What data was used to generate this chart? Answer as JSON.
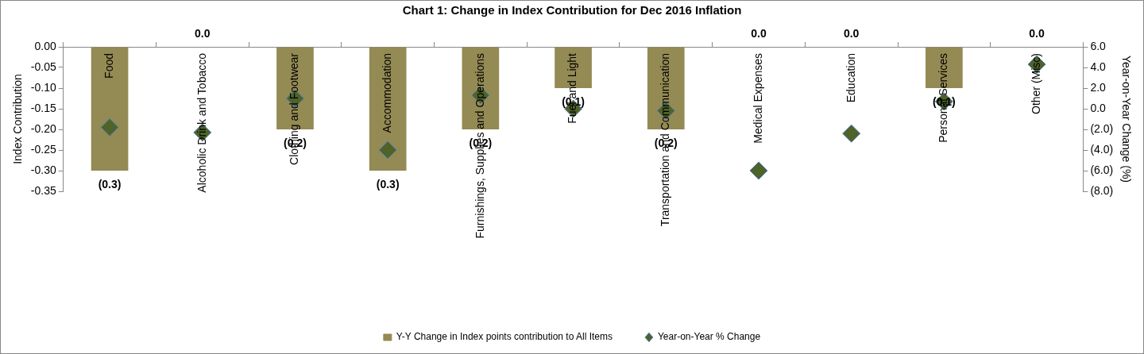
{
  "chart_data": {
    "type": "bar",
    "title": "Chart 1: Change in Index Contribution for Dec 2016 Inflation",
    "ylabel": "Index Contribution",
    "y2label": "Year-on-Year Change (%)",
    "categories": [
      "Food",
      "Alcoholic Drink and Tobacco",
      "Clothing and Footwear",
      "Accommodation",
      "Furnishings, Supplies and Operations",
      "Fuel and Light",
      "Transportation and Communication",
      "Medical Expenses",
      "Education",
      "Personal Services",
      "Other (Misc)"
    ],
    "series": [
      {
        "name": "Y-Y Change in Index points contribution to All Items",
        "color": "#948a54",
        "values": [
          -0.3,
          0.0,
          -0.2,
          -0.3,
          -0.2,
          -0.1,
          -0.2,
          0.0,
          0.0,
          -0.1,
          0.0
        ],
        "value_labels": [
          "(0.3)",
          "0.0",
          "(0.2)",
          "(0.3)",
          "(0.2)",
          "(0.1)",
          "(0.2)",
          "0.0",
          "0.0",
          "(0.1)",
          "0.0"
        ]
      },
      {
        "name": "Year-on-Year % Change",
        "type": "scatter",
        "axis": "y2",
        "color": "#4f6228",
        "x": [
          "Food",
          "Alcoholic Drink and Tobacco",
          "Clothing and Footwear",
          "Accommodation",
          "Furnishings, Supplies and Operations",
          "Fuel and Light",
          "Transportation and Communication",
          "Medical Expenses",
          "Education",
          "Personal Services",
          "Other (Misc)"
        ],
        "values": [
          -1.8,
          -2.3,
          1.0,
          -4.0,
          1.3,
          0.0,
          -0.2,
          -6.0,
          -2.4,
          0.7,
          4.3
        ]
      }
    ],
    "ylim": [
      -0.35,
      0
    ],
    "yticks": [
      {
        "value": 0,
        "label": "0.00"
      },
      {
        "value": -0.05,
        "label": "-0.05"
      },
      {
        "value": -0.1,
        "label": "-0.10"
      },
      {
        "value": -0.15,
        "label": "-0.15"
      },
      {
        "value": -0.2,
        "label": "-0.20"
      },
      {
        "value": -0.25,
        "label": "-0.25"
      },
      {
        "value": -0.3,
        "label": "-0.30"
      },
      {
        "value": -0.35,
        "label": "-0.35"
      }
    ],
    "y2lim": [
      -8,
      6
    ],
    "y2ticks": [
      {
        "value": 6,
        "label": "6.0"
      },
      {
        "value": 4,
        "label": "4.0"
      },
      {
        "value": 2,
        "label": "2.0"
      },
      {
        "value": 0,
        "label": "0.0"
      },
      {
        "value": -2,
        "label": "(2.0)"
      },
      {
        "value": -4,
        "label": "(4.0)"
      },
      {
        "value": -6,
        "label": "(6.0)"
      },
      {
        "value": -8,
        "label": "(8.0)"
      }
    ],
    "grid": false,
    "legend": "bottom",
    "marker": "diamond"
  }
}
